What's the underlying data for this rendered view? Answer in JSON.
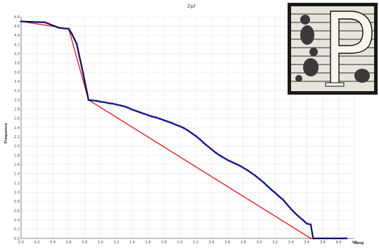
{
  "chart_data": {
    "type": "line",
    "title": "Zipf",
    "xlabel": "Rang",
    "ylabel": "Frequence",
    "xlim": [
      0.0,
      4.2
    ],
    "ylim": [
      0.0,
      4.8
    ],
    "grid": true,
    "x_ticks": [
      "0.0",
      "0.2",
      "0.4",
      "0.6",
      "0.8",
      "1.0",
      "1.2",
      "1.4",
      "1.6",
      "1.8",
      "2.0",
      "2.2",
      "2.4",
      "2.6",
      "2.8",
      "3.0",
      "3.2",
      "3.4",
      "3.6",
      "3.8",
      "4.0",
      "4.2"
    ],
    "y_ticks": [
      "0.0",
      "0.2",
      "0.4",
      "0.6",
      "0.8",
      "1.0",
      "1.2",
      "1.4",
      "1.6",
      "1.8",
      "2.0",
      "2.2",
      "2.4",
      "2.6",
      "2.8",
      "3.0",
      "3.2",
      "3.4",
      "3.6",
      "3.8",
      "4.0",
      "4.2",
      "4.4",
      "4.6",
      "4.8"
    ],
    "series": [
      {
        "role": "observed-curve",
        "color": "#0a0a5a",
        "marker_color": "#2020c0",
        "points": [
          [
            0.0,
            4.7
          ],
          [
            0.3,
            4.68
          ],
          [
            0.48,
            4.56
          ],
          [
            0.6,
            4.54
          ],
          [
            0.64,
            4.43
          ],
          [
            0.7,
            4.22
          ],
          [
            0.78,
            3.59
          ],
          [
            0.85,
            3.0
          ],
          [
            0.9,
            2.99
          ],
          [
            0.95,
            2.98
          ],
          [
            1.0,
            2.96
          ],
          [
            1.05,
            2.95
          ],
          [
            1.1,
            2.93
          ],
          [
            1.15,
            2.92
          ],
          [
            1.2,
            2.9
          ],
          [
            1.25,
            2.88
          ],
          [
            1.3,
            2.86
          ],
          [
            1.35,
            2.83
          ],
          [
            1.4,
            2.79
          ],
          [
            1.45,
            2.76
          ],
          [
            1.5,
            2.73
          ],
          [
            1.55,
            2.7
          ],
          [
            1.6,
            2.67
          ],
          [
            1.65,
            2.64
          ],
          [
            1.7,
            2.62
          ],
          [
            1.75,
            2.59
          ],
          [
            1.8,
            2.56
          ],
          [
            1.85,
            2.53
          ],
          [
            1.9,
            2.5
          ],
          [
            1.95,
            2.46
          ],
          [
            2.0,
            2.43
          ],
          [
            2.05,
            2.39
          ],
          [
            2.1,
            2.34
          ],
          [
            2.15,
            2.28
          ],
          [
            2.2,
            2.22
          ],
          [
            2.25,
            2.15
          ],
          [
            2.3,
            2.07
          ],
          [
            2.35,
            2.0
          ],
          [
            2.4,
            1.93
          ],
          [
            2.45,
            1.86
          ],
          [
            2.5,
            1.8
          ],
          [
            2.55,
            1.75
          ],
          [
            2.6,
            1.7
          ],
          [
            2.65,
            1.66
          ],
          [
            2.7,
            1.62
          ],
          [
            2.75,
            1.58
          ],
          [
            2.8,
            1.53
          ],
          [
            2.85,
            1.48
          ],
          [
            2.9,
            1.42
          ],
          [
            2.95,
            1.36
          ],
          [
            3.0,
            1.29
          ],
          [
            3.05,
            1.22
          ],
          [
            3.1,
            1.14
          ],
          [
            3.15,
            1.06
          ],
          [
            3.2,
            0.99
          ],
          [
            3.25,
            0.91
          ],
          [
            3.3,
            0.84
          ],
          [
            3.35,
            0.74
          ],
          [
            3.4,
            0.64
          ],
          [
            3.45,
            0.55
          ],
          [
            3.5,
            0.47
          ],
          [
            3.55,
            0.4
          ],
          [
            3.6,
            0.32
          ],
          [
            3.65,
            0.3
          ],
          [
            3.68,
            0.0
          ],
          [
            3.75,
            0.0
          ],
          [
            3.85,
            0.0
          ],
          [
            3.95,
            0.0
          ],
          [
            4.05,
            0.0
          ],
          [
            4.1,
            0.0
          ]
        ]
      },
      {
        "role": "fitted-lines",
        "color": "#e02020",
        "points": [
          [
            0.0,
            4.7
          ],
          [
            0.6,
            4.54
          ],
          [
            0.85,
            3.0
          ],
          [
            3.65,
            0.0
          ]
        ]
      }
    ]
  },
  "decoration": {
    "image_kind": "ornamental woodcut initial letter",
    "letter": "P"
  }
}
